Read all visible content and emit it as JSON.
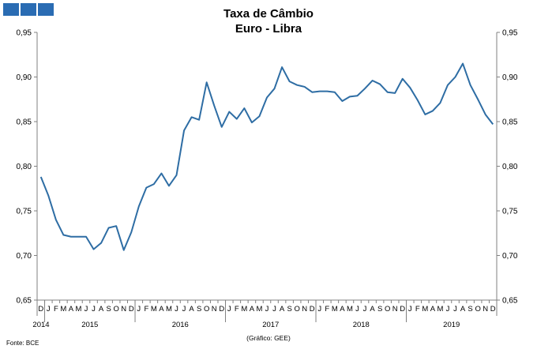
{
  "chart_data": {
    "type": "line",
    "title": "Taxa de Câmbio",
    "subtitle": "Euro - Libra",
    "ylim": [
      0.65,
      0.95
    ],
    "yticks": [
      "0,95",
      "0,90",
      "0,85",
      "0,80",
      "0,75",
      "0,70",
      "0,65"
    ],
    "month_labels": [
      "D",
      "J",
      "F",
      "M",
      "A",
      "M",
      "J",
      "J",
      "A",
      "S",
      "O",
      "N",
      "D",
      "J",
      "F",
      "M",
      "A",
      "M",
      "J",
      "J",
      "A",
      "S",
      "O",
      "N",
      "D",
      "J",
      "F",
      "M",
      "A",
      "M",
      "J",
      "J",
      "A",
      "S",
      "O",
      "N",
      "D",
      "J",
      "F",
      "M",
      "A",
      "M",
      "J",
      "J",
      "A",
      "S",
      "O",
      "N",
      "D",
      "J",
      "F",
      "M",
      "A",
      "M",
      "J",
      "J",
      "A",
      "S",
      "O",
      "N",
      "D"
    ],
    "years": [
      "2014",
      "2015",
      "2016",
      "2017",
      "2018",
      "2019"
    ],
    "series": [
      {
        "color": "#2e6da4",
        "x": [
          "2014-12",
          "2015-01",
          "2015-02",
          "2015-03",
          "2015-04",
          "2015-05",
          "2015-06",
          "2015-07",
          "2015-08",
          "2015-09",
          "2015-10",
          "2015-11",
          "2015-12",
          "2016-01",
          "2016-02",
          "2016-03",
          "2016-04",
          "2016-05",
          "2016-06",
          "2016-07",
          "2016-08",
          "2016-09",
          "2016-10",
          "2016-11",
          "2016-12",
          "2017-01",
          "2017-02",
          "2017-03",
          "2017-04",
          "2017-05",
          "2017-06",
          "2017-07",
          "2017-08",
          "2017-09",
          "2017-10",
          "2017-11",
          "2017-12",
          "2018-01",
          "2018-02",
          "2018-03",
          "2018-04",
          "2018-05",
          "2018-06",
          "2018-07",
          "2018-08",
          "2018-09",
          "2018-10",
          "2018-11",
          "2018-12",
          "2019-01",
          "2019-02",
          "2019-03",
          "2019-04",
          "2019-05",
          "2019-06",
          "2019-07",
          "2019-08",
          "2019-09",
          "2019-10",
          "2019-11",
          "2019-12"
        ],
        "values": [
          0.788,
          0.767,
          0.74,
          0.723,
          0.721,
          0.721,
          0.721,
          0.707,
          0.714,
          0.731,
          0.733,
          0.706,
          0.726,
          0.755,
          0.776,
          0.78,
          0.792,
          0.778,
          0.79,
          0.84,
          0.855,
          0.852,
          0.894,
          0.868,
          0.844,
          0.861,
          0.853,
          0.865,
          0.849,
          0.856,
          0.877,
          0.887,
          0.911,
          0.895,
          0.891,
          0.889,
          0.883,
          0.884,
          0.884,
          0.883,
          0.873,
          0.878,
          0.879,
          0.887,
          0.896,
          0.892,
          0.883,
          0.882,
          0.898,
          0.888,
          0.874,
          0.858,
          0.862,
          0.871,
          0.891,
          0.9,
          0.915,
          0.891,
          0.875,
          0.858,
          0.847
        ]
      }
    ],
    "grid": false,
    "legend": "none"
  },
  "footer": {
    "source": "Fonte: BCE",
    "credit": "(Gráfico: GEE)"
  }
}
